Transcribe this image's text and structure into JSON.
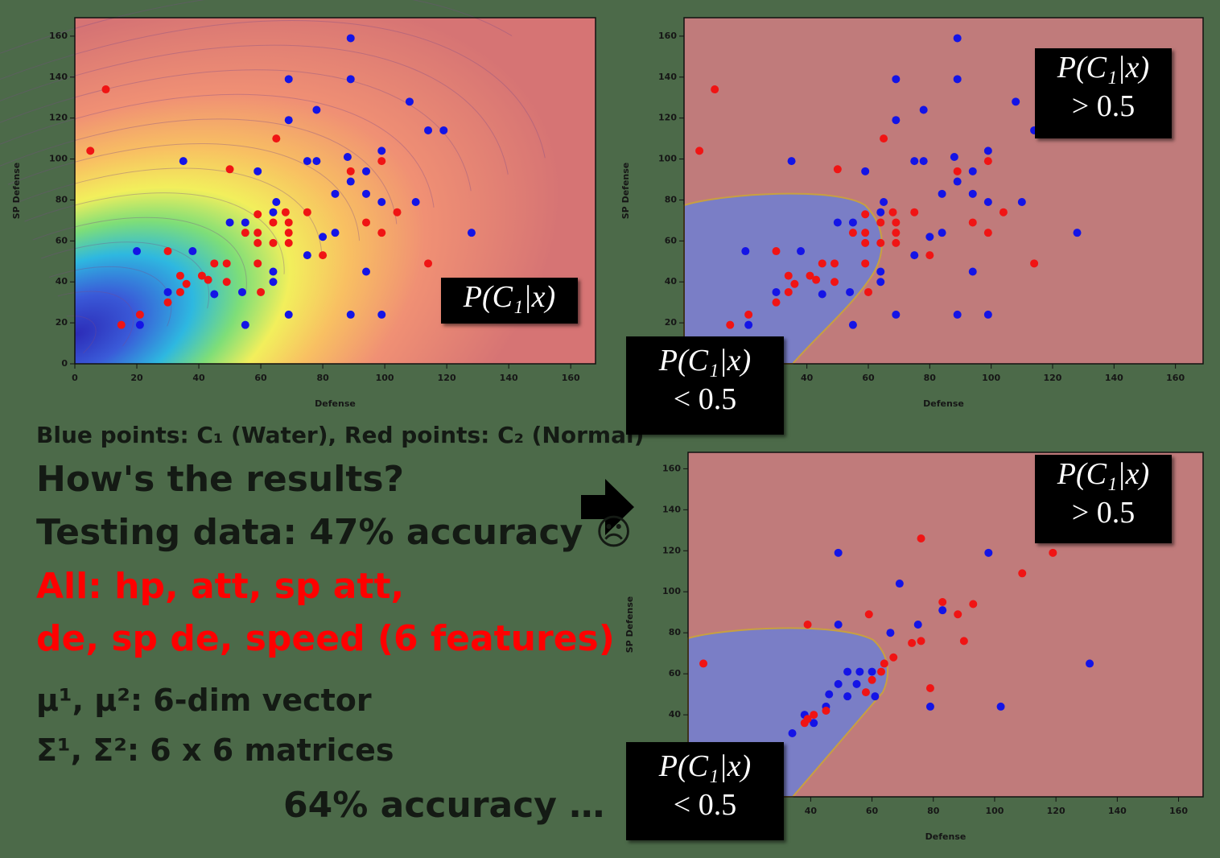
{
  "chart_data": [
    {
      "type": "scatter",
      "xlabel": "Defense",
      "ylabel": "SP Defense",
      "xlim": [
        0,
        168
      ],
      "ylim": [
        0,
        169
      ],
      "xticks": [
        0,
        20,
        40,
        60,
        80,
        100,
        120,
        140,
        160
      ],
      "yticks": [
        0,
        20,
        40,
        60,
        80,
        100,
        120,
        140,
        160
      ],
      "annotations": [
        "P(C₁|x)"
      ],
      "series": [
        {
          "color": "#1414e6",
          "x": [
            89,
            69,
            89,
            108,
            78,
            69,
            114,
            119,
            35,
            59,
            75,
            78,
            88,
            99,
            94,
            89,
            65,
            84,
            94,
            99,
            110,
            50,
            55,
            64,
            80,
            84,
            128,
            20,
            38,
            75,
            94,
            64,
            64,
            30,
            54,
            45,
            69,
            89,
            99,
            55,
            21
          ],
          "values": [
            159,
            139,
            139,
            128,
            124,
            119,
            114,
            114,
            99,
            94,
            99,
            99,
            101,
            104,
            94,
            89,
            79,
            83,
            83,
            79,
            79,
            69,
            69,
            74,
            62,
            64,
            64,
            55,
            55,
            53,
            45,
            40,
            45,
            35,
            35,
            34,
            24,
            24,
            24,
            19,
            19
          ]
        },
        {
          "color": "#f01414",
          "x": [
            10,
            5,
            65,
            50,
            89,
            99,
            59,
            64,
            68,
            75,
            94,
            104,
            99,
            55,
            59,
            69,
            59,
            64,
            69,
            80,
            49,
            45,
            59,
            114,
            30,
            34,
            41,
            43,
            36,
            49,
            34,
            60,
            30,
            21,
            15,
            69
          ],
          "values": [
            134,
            104,
            110,
            95,
            94,
            99,
            73,
            69,
            74,
            74,
            69,
            74,
            64,
            64,
            64,
            64,
            59,
            59,
            59,
            53,
            49,
            49,
            49,
            49,
            55,
            43,
            43,
            41,
            39,
            40,
            35,
            35,
            30,
            24,
            19,
            69
          ]
        }
      ]
    },
    {
      "type": "scatter",
      "xlabel": "Defense",
      "ylabel": "SP Defense",
      "xlim": [
        0,
        169
      ],
      "ylim": [
        0,
        169
      ],
      "xticks": [
        0,
        20,
        40,
        60,
        80,
        100,
        120,
        140,
        160
      ],
      "yticks": [
        0,
        20,
        40,
        60,
        80,
        100,
        120,
        140,
        160
      ],
      "annotations": [
        "P(C₁|x)",
        "> 0.5",
        "P(C₁|x)",
        "< 0.5"
      ]
    },
    {
      "type": "scatter",
      "xlabel": "Defense",
      "ylabel": "SP Defense",
      "xlim": [
        0,
        168
      ],
      "ylim": [
        0,
        168
      ],
      "xticks": [
        0,
        20,
        40,
        60,
        80,
        100,
        120,
        140,
        160
      ],
      "yticks": [
        0,
        20,
        40,
        60,
        80,
        100,
        120,
        140,
        160
      ],
      "annotations": [
        "P(C₁|x)",
        "> 0.5",
        "P(C₁|x)",
        "< 0.5"
      ],
      "series": [
        {
          "color": "#1414e6",
          "x": [
            49,
            69,
            49,
            66,
            75,
            83,
            98,
            52,
            56,
            60,
            55,
            49,
            46,
            52,
            61,
            38,
            41,
            34,
            79,
            102,
            131,
            45
          ],
          "values": [
            119,
            104,
            84,
            80,
            84,
            91,
            119,
            61,
            61,
            61,
            55,
            55,
            50,
            49,
            49,
            40,
            36,
            31,
            44,
            44,
            65,
            44
          ]
        },
        {
          "color": "#f01414",
          "x": [
            76,
            119,
            109,
            83,
            93,
            88,
            59,
            39,
            76,
            73,
            90,
            67,
            64,
            63,
            60,
            58,
            79,
            45,
            41,
            39,
            38,
            5
          ],
          "values": [
            126,
            119,
            109,
            95,
            94,
            89,
            89,
            84,
            76,
            75,
            76,
            68,
            65,
            61,
            57,
            51,
            53,
            42,
            40,
            38,
            36,
            65
          ]
        }
      ]
    }
  ],
  "slide": {
    "legend_note": "Blue points: C₁ (Water), Red points: C₂ (Normal)",
    "question": "How's the results?",
    "testing": "Testing data: 47% accuracy ☹",
    "features_1": "All: hp, att, sp att,",
    "features_2": "de, sp de, speed (6 features)",
    "mu": "μ¹, μ²: 6-dim vector",
    "sigma": "Σ¹, Σ²: 6 x 6 matrices",
    "result": "64% accuracy …"
  }
}
